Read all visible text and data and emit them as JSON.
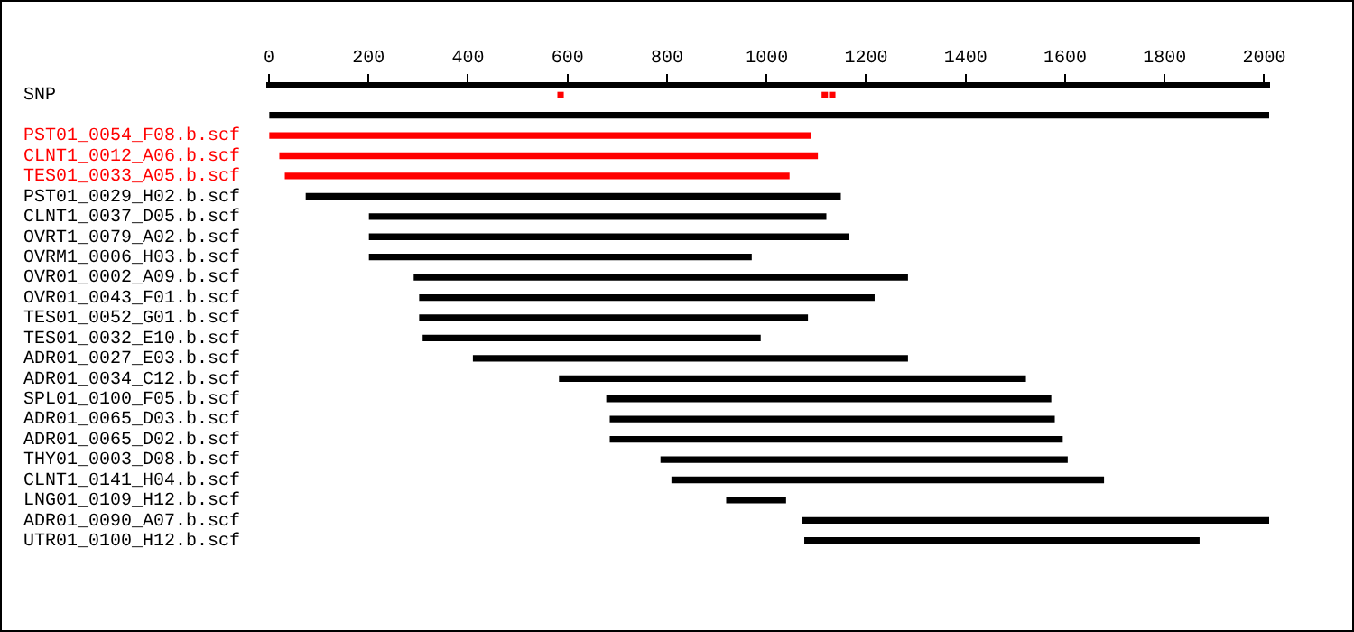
{
  "chart_data": {
    "type": "bar",
    "orientation": "horizontal",
    "categories": [
      "SNP",
      null,
      "PST01_0054_F08.b.scf",
      "CLNT1_0012_A06.b.scf",
      "TES01_0033_A05.b.scf",
      "PST01_0029_H02.b.scf",
      "CLNT1_0037_D05.b.scf",
      "OVRT1_0079_A02.b.scf",
      "OVRM1_0006_H03.b.scf",
      "OVR01_0002_A09.b.scf",
      "OVR01_0043_F01.b.scf",
      "TES01_0052_G01.b.scf",
      "TES01_0032_E10.b.scf",
      "ADR01_0027_E03.b.scf",
      "ADR01_0034_C12.b.scf",
      "SPL01_0100_F05.b.scf",
      "ADR01_0065_D03.b.scf",
      "ADR01_0065_D02.b.scf",
      "THY01_0003_D08.b.scf",
      "CLNT1_0141_H04.b.scf",
      "LNG01_0109_H12.b.scf",
      "ADR01_0090_A07.b.scf",
      "UTR01_0100_H12.b.scf"
    ],
    "series": [
      {
        "base": [
          null,
          0,
          0,
          22,
          33,
          75,
          202,
          202,
          202,
          292,
          303,
          303,
          310,
          411,
          584,
          679,
          686,
          686,
          788,
          810,
          920,
          1073,
          1077
        ],
        "values": [
          null,
          2010,
          1088,
          1080,
          1012,
          1073,
          917,
          963,
          767,
          991,
          913,
          779,
          677,
          872,
          936,
          892,
          892,
          908,
          816,
          867,
          118,
          940,
          792
        ],
        "colors": [
          "#000000",
          "#000000",
          "#ff0000",
          "#ff0000",
          "#ff0000",
          "#000000",
          "#000000",
          "#000000",
          "#000000",
          "#000000",
          "#000000",
          "#000000",
          "#000000",
          "#000000",
          "#000000",
          "#000000",
          "#000000",
          "#000000",
          "#000000",
          "#000000",
          "#000000",
          "#000000",
          "#000000"
        ]
      },
      {
        "type": "scatter",
        "color": "#ff0000",
        "marker": "square",
        "x": [
          "SNP",
          "SNP",
          "SNP"
        ],
        "values": [
          586,
          1117,
          1132
        ]
      }
    ],
    "xlim": [
      0,
      2010
    ],
    "xticks": [
      0,
      200,
      400,
      600,
      800,
      1000,
      1200,
      1400,
      1600,
      1800,
      2000
    ],
    "grid": false,
    "legend": false
  }
}
